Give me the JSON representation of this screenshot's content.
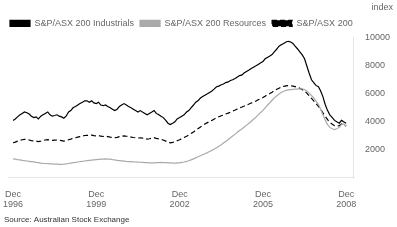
{
  "chart_data": {
    "type": "line",
    "ylabel": "index",
    "annotations": [
      "Source: Australian Stock Exchange"
    ],
    "xlim": [
      1996.75,
      2009.2
    ],
    "ylim": [
      0,
      10000
    ],
    "xticks": [
      {
        "value": 1996.92,
        "label": "Dec\n1996"
      },
      {
        "value": 1999.92,
        "label": "Dec\n1999"
      },
      {
        "value": 2002.92,
        "label": "Dec\n2002"
      },
      {
        "value": 2005.92,
        "label": "Dec\n2005"
      },
      {
        "value": 2008.92,
        "label": "Dec\n2008"
      }
    ],
    "yticks": [
      {
        "value": 0,
        "label": ""
      },
      2000,
      4000,
      6000,
      8000,
      10000
    ],
    "grid": false,
    "legend": "upper left",
    "x": [
      1996.92,
      1997.0,
      1997.08,
      1997.17,
      1997.25,
      1997.33,
      1997.42,
      1997.5,
      1997.58,
      1997.67,
      1997.75,
      1997.83,
      1997.92,
      1998.0,
      1998.08,
      1998.17,
      1998.25,
      1998.33,
      1998.42,
      1998.5,
      1998.58,
      1998.67,
      1998.75,
      1998.83,
      1998.92,
      1999.0,
      1999.08,
      1999.17,
      1999.25,
      1999.33,
      1999.42,
      1999.5,
      1999.58,
      1999.67,
      1999.75,
      1999.83,
      1999.92,
      2000.0,
      2000.08,
      2000.17,
      2000.25,
      2000.33,
      2000.42,
      2000.5,
      2000.58,
      2000.67,
      2000.75,
      2000.83,
      2000.92,
      2001.0,
      2001.08,
      2001.17,
      2001.25,
      2001.33,
      2001.42,
      2001.5,
      2001.58,
      2001.67,
      2001.75,
      2001.83,
      2001.92,
      2002.0,
      2002.08,
      2002.17,
      2002.25,
      2002.33,
      2002.42,
      2002.5,
      2002.58,
      2002.67,
      2002.75,
      2002.83,
      2002.92,
      2003.0,
      2003.08,
      2003.17,
      2003.25,
      2003.33,
      2003.42,
      2003.5,
      2003.58,
      2003.67,
      2003.75,
      2003.83,
      2003.92,
      2004.0,
      2004.08,
      2004.17,
      2004.25,
      2004.33,
      2004.42,
      2004.5,
      2004.58,
      2004.67,
      2004.75,
      2004.83,
      2004.92,
      2005.0,
      2005.08,
      2005.17,
      2005.25,
      2005.33,
      2005.42,
      2005.5,
      2005.58,
      2005.67,
      2005.75,
      2005.83,
      2005.92,
      2006.0,
      2006.08,
      2006.17,
      2006.25,
      2006.33,
      2006.42,
      2006.5,
      2006.58,
      2006.67,
      2006.75,
      2006.83,
      2006.92,
      2007.0,
      2007.08,
      2007.17,
      2007.25,
      2007.33,
      2007.42,
      2007.5,
      2007.58,
      2007.67,
      2007.75,
      2007.83,
      2007.92,
      2008.0,
      2008.08,
      2008.17,
      2008.25,
      2008.33,
      2008.42,
      2008.5,
      2008.58,
      2008.67,
      2008.75,
      2008.83,
      2008.92
    ],
    "series": [
      {
        "name": "S&P/ASX 200 Industrials",
        "color": "#000000",
        "line_style": "solid",
        "values": [
          4100,
          4200,
          4350,
          4500,
          4600,
          4700,
          4650,
          4550,
          4400,
          4300,
          4350,
          4200,
          4400,
          4500,
          4600,
          4700,
          4500,
          4400,
          4450,
          4500,
          4400,
          4350,
          4250,
          4400,
          4700,
          4800,
          5000,
          5100,
          5200,
          5300,
          5400,
          5500,
          5500,
          5400,
          5500,
          5350,
          5300,
          5400,
          5200,
          5150,
          5200,
          5100,
          5000,
          4900,
          4800,
          4900,
          5100,
          5200,
          5300,
          5200,
          5100,
          5000,
          4900,
          4800,
          4700,
          4800,
          4700,
          4600,
          4500,
          4600,
          4700,
          4800,
          4600,
          4500,
          4400,
          4300,
          4100,
          3900,
          3800,
          3900,
          4000,
          4200,
          4300,
          4400,
          4500,
          4700,
          4800,
          5000,
          5200,
          5400,
          5500,
          5700,
          5800,
          5900,
          6000,
          6100,
          6200,
          6350,
          6500,
          6550,
          6650,
          6700,
          6800,
          6850,
          6950,
          7000,
          7100,
          7200,
          7300,
          7350,
          7500,
          7600,
          7700,
          7800,
          7900,
          8000,
          8100,
          8200,
          8300,
          8500,
          8600,
          8700,
          8800,
          9000,
          9200,
          9400,
          9500,
          9600,
          9700,
          9750,
          9700,
          9600,
          9400,
          9200,
          9000,
          8800,
          8500,
          8000,
          7500,
          7000,
          6800,
          6600,
          6500,
          6200,
          5800,
          5200,
          4800,
          4500,
          4300,
          4100,
          4000,
          3900,
          4100,
          4000,
          3900
        ]
      },
      {
        "name": "S&P/ASX 200 Resources",
        "color": "#aaaaaa",
        "line_style": "solid",
        "values": [
          1350,
          1330,
          1300,
          1280,
          1250,
          1220,
          1200,
          1180,
          1160,
          1140,
          1100,
          1080,
          1050,
          1030,
          1020,
          1010,
          1000,
          990,
          980,
          970,
          960,
          960,
          970,
          990,
          1020,
          1050,
          1080,
          1100,
          1130,
          1150,
          1180,
          1200,
          1220,
          1240,
          1260,
          1280,
          1300,
          1320,
          1330,
          1340,
          1350,
          1340,
          1330,
          1300,
          1280,
          1250,
          1230,
          1210,
          1190,
          1170,
          1160,
          1150,
          1140,
          1130,
          1120,
          1110,
          1100,
          1090,
          1080,
          1070,
          1060,
          1070,
          1080,
          1090,
          1100,
          1090,
          1080,
          1070,
          1060,
          1050,
          1050,
          1060,
          1070,
          1100,
          1130,
          1170,
          1220,
          1280,
          1350,
          1420,
          1500,
          1580,
          1650,
          1720,
          1800,
          1880,
          1960,
          2050,
          2150,
          2250,
          2360,
          2480,
          2600,
          2730,
          2860,
          2990,
          3120,
          3250,
          3380,
          3500,
          3630,
          3760,
          3900,
          4040,
          4180,
          4330,
          4490,
          4650,
          4820,
          5000,
          5180,
          5360,
          5540,
          5710,
          5860,
          5990,
          6100,
          6180,
          6240,
          6280,
          6300,
          6320,
          6330,
          6340,
          6350,
          6360,
          6300,
          6200,
          6050,
          5880,
          5700,
          5500,
          5250,
          4900,
          4500,
          4100,
          3800,
          3600,
          3500,
          3450,
          3500,
          3600,
          3800,
          3850,
          3700
        ]
      },
      {
        "name": "S&P/ASX 200",
        "color": "#000000",
        "line_style": "dashed",
        "values": [
          2500,
          2550,
          2620,
          2680,
          2720,
          2750,
          2730,
          2700,
          2660,
          2630,
          2620,
          2580,
          2620,
          2660,
          2700,
          2730,
          2700,
          2680,
          2690,
          2700,
          2680,
          2660,
          2620,
          2650,
          2720,
          2760,
          2820,
          2860,
          2900,
          2940,
          2980,
          3020,
          3040,
          3030,
          3050,
          3010,
          3000,
          3020,
          2970,
          2950,
          2970,
          2940,
          2900,
          2880,
          2860,
          2890,
          2940,
          2970,
          3000,
          2970,
          2940,
          2910,
          2880,
          2860,
          2840,
          2860,
          2840,
          2800,
          2760,
          2790,
          2830,
          2870,
          2820,
          2780,
          2740,
          2700,
          2620,
          2550,
          2490,
          2530,
          2580,
          2650,
          2720,
          2800,
          2880,
          2970,
          3060,
          3160,
          3270,
          3390,
          3510,
          3630,
          3740,
          3840,
          3940,
          4020,
          4100,
          4200,
          4300,
          4360,
          4430,
          4490,
          4560,
          4620,
          4690,
          4760,
          4840,
          4920,
          5000,
          5060,
          5130,
          5200,
          5270,
          5340,
          5410,
          5490,
          5570,
          5650,
          5730,
          5830,
          5930,
          6020,
          6110,
          6220,
          6320,
          6400,
          6480,
          6530,
          6570,
          6590,
          6580,
          6550,
          6510,
          6460,
          6390,
          6300,
          6200,
          6050,
          5870,
          5680,
          5500,
          5300,
          5100,
          4880,
          4640,
          4380,
          4150,
          3960,
          3820,
          3720,
          3700,
          3720,
          3850,
          3780,
          3700
        ]
      }
    ]
  }
}
